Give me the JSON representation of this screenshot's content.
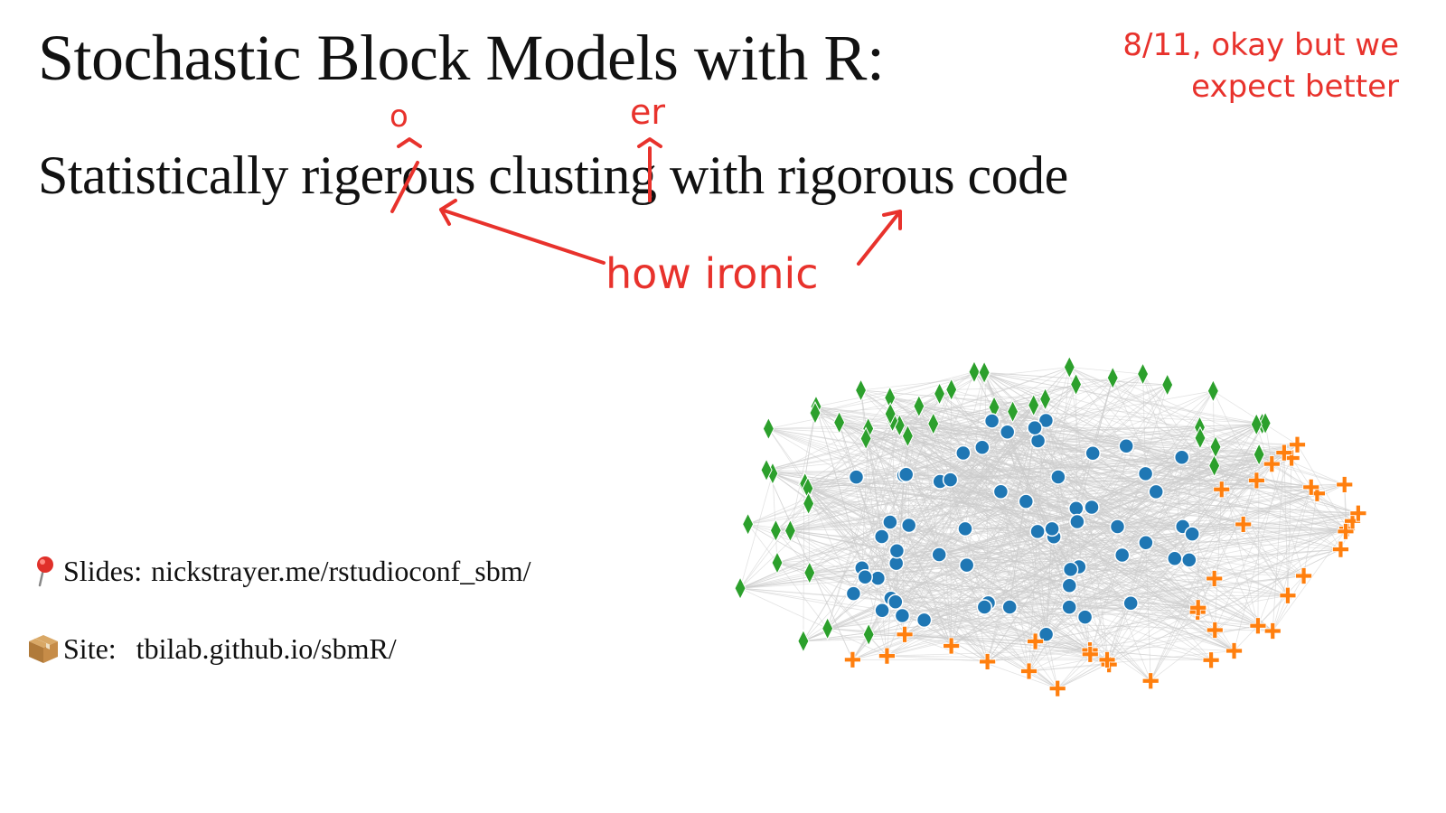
{
  "slide": {
    "title": "Stochastic Block Models with R:",
    "subtitle": "Statistically rigerous clusting with rigorous code",
    "links": {
      "slides_icon": "round-pushpin-icon",
      "slides_label": "Slides:",
      "slides_url": "nickstrayer.me/rstudioconf_sbm/",
      "site_icon": "package-icon",
      "site_label": "Site:",
      "site_url": "tbilab.github.io/sbmR/"
    }
  },
  "annotations": {
    "color": "#e8322c",
    "grade_line1": "8/11, okay but we",
    "grade_line2": "expect better",
    "insert_o": "o",
    "insert_er": "er",
    "ironic": "how ironic"
  },
  "network": {
    "edge_color": "#cccccc",
    "groups": [
      {
        "marker": "diamond",
        "color": "#2ca02c"
      },
      {
        "marker": "circle",
        "color": "#1f77b4"
      },
      {
        "marker": "cross",
        "color": "#ff7f0e"
      }
    ]
  }
}
